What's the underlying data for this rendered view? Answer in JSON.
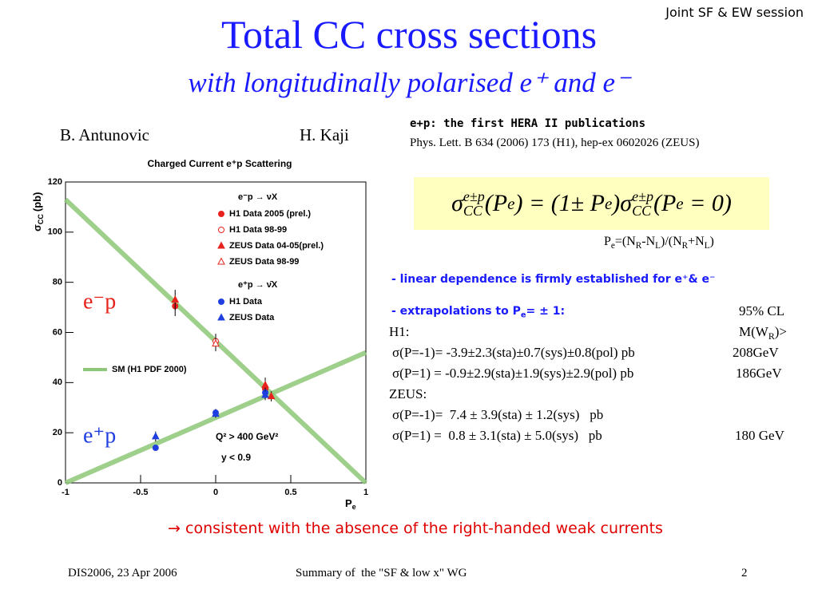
{
  "header": {
    "session": "Joint SF & EW session",
    "title": "Total CC cross sections",
    "subtitle": "with longitudinally polarised e⁺ and e⁻"
  },
  "authors": [
    "B. Antunovic",
    "H. Kaji"
  ],
  "publications": {
    "heading": "e+p: the first HERA II publications",
    "reference": "Phys. Lett. B 634 (2006) 173 (H1), hep-ex 0602026 (ZEUS)"
  },
  "formula": [
    "σ",
    "e±p",
    "CC",
    "(P",
    "e",
    ") = (1± P",
    "e",
    ")σ",
    "e±p",
    "CC",
    "(P",
    "e",
    " = 0)"
  ],
  "polarisation_definition": [
    "P",
    "e",
    "=(N",
    "R",
    "-N",
    "L",
    ")/(N",
    "R",
    "+N",
    "L",
    ")"
  ],
  "bullet_linear": "- linear dependence is firmly established for e⁺& e⁻",
  "extrapolation": {
    "tokens": [
      "- extrapolations to P",
      "e",
      "= ± 1:"
    ],
    "cl": "95% CL",
    "groups": [
      {
        "name": "H1:",
        "mass_header": [
          "M(W",
          "R",
          ")>"
        ],
        "rows": [
          [
            "σ(P=-1)= -3.9±2.3(sta)±0.7(sys)±0.8(pol) pb",
            "208GeV"
          ],
          [
            "σ(P=1) = -0.9±2.9(sta)±1.9(sys)±2.9(pol) pb",
            "186GeV"
          ]
        ]
      },
      {
        "name": "ZEUS:",
        "rows": [
          [
            "σ(P=-1)=  7.4 ± 3.9(sta) ± 1.2(sys)   pb"
          ],
          [
            "σ(P=1) =  0.8 ± 3.1(sta) ± 5.0(sys)   pb",
            "180 GeV"
          ]
        ]
      }
    ]
  },
  "conclusion": "→ consistent with the absence of the right-handed weak currents",
  "footer": {
    "left": "DIS2006, 23 Apr 2006",
    "center": "Summary of  the \"SF & low x\" WG",
    "page": "2"
  },
  "chart_data": {
    "type": "scatter",
    "title": "Charged Current e⁺p Scattering",
    "x_label": "P",
    "x_label_sub": "e",
    "y_label": "σ",
    "y_label_sub": "CC",
    "y_label_unit": "(pb)",
    "xlim": [
      -1,
      1
    ],
    "xticks": [
      -1,
      -0.5,
      0,
      0.5,
      1
    ],
    "ylim": [
      0,
      120
    ],
    "yticks": [
      0,
      20,
      40,
      60,
      80,
      100,
      120
    ],
    "legend_groups": [
      "e⁻p → νX",
      "e⁺p → ν̄X"
    ],
    "series": [
      {
        "name": "H1 Data 2005 (prel.)",
        "color": "#e8221c",
        "marker": "circle",
        "filled": true,
        "group": 0,
        "x": [
          -0.27,
          0.33
        ],
        "values": [
          70.5,
          37.5
        ],
        "errors": [
          4,
          3
        ]
      },
      {
        "name": "H1 Data 98-99",
        "color": "#e8221c",
        "marker": "circle",
        "filled": false,
        "group": 0,
        "x": [
          0
        ],
        "values": [
          56.5
        ],
        "errors": [
          3
        ]
      },
      {
        "name": "ZEUS Data 04-05(prel.)",
        "color": "#e8221c",
        "marker": "triangle",
        "filled": true,
        "group": 0,
        "x": [
          -0.27,
          0.33,
          0.37
        ],
        "values": [
          73,
          39,
          34.5
        ],
        "errors": [
          4,
          3,
          2
        ]
      },
      {
        "name": "ZEUS Data 98-99",
        "color": "#e8221c",
        "marker": "triangle",
        "filled": false,
        "group": 0,
        "x": [
          0
        ],
        "values": [
          55.5
        ],
        "errors": [
          3
        ]
      },
      {
        "name": "H1 Data",
        "color": "#1f3fe0",
        "marker": "circle",
        "filled": true,
        "group": 1,
        "x": [
          -0.4,
          0,
          0.33
        ],
        "values": [
          14,
          28,
          36
        ],
        "errors": [
          1,
          1.5,
          2
        ]
      },
      {
        "name": "ZEUS Data",
        "color": "#1f3fe0",
        "marker": "triangle",
        "filled": true,
        "group": 1,
        "x": [
          -0.4,
          0,
          0.33
        ],
        "values": [
          18.5,
          27.5,
          35
        ],
        "errors": [
          2,
          1.5,
          2
        ]
      }
    ],
    "sm": {
      "name": "SM (H1 PDF 2000)",
      "color": "#8dc878",
      "lines": [
        {
          "x": [
            -1,
            1
          ],
          "values": [
            113,
            0
          ]
        },
        {
          "x": [
            -1,
            1
          ],
          "values": [
            0,
            52
          ]
        }
      ]
    },
    "annotations": [
      "Q² > 400 GeV²",
      "y < 0.9"
    ],
    "labels": [
      "e⁻p",
      "e⁺p"
    ]
  }
}
